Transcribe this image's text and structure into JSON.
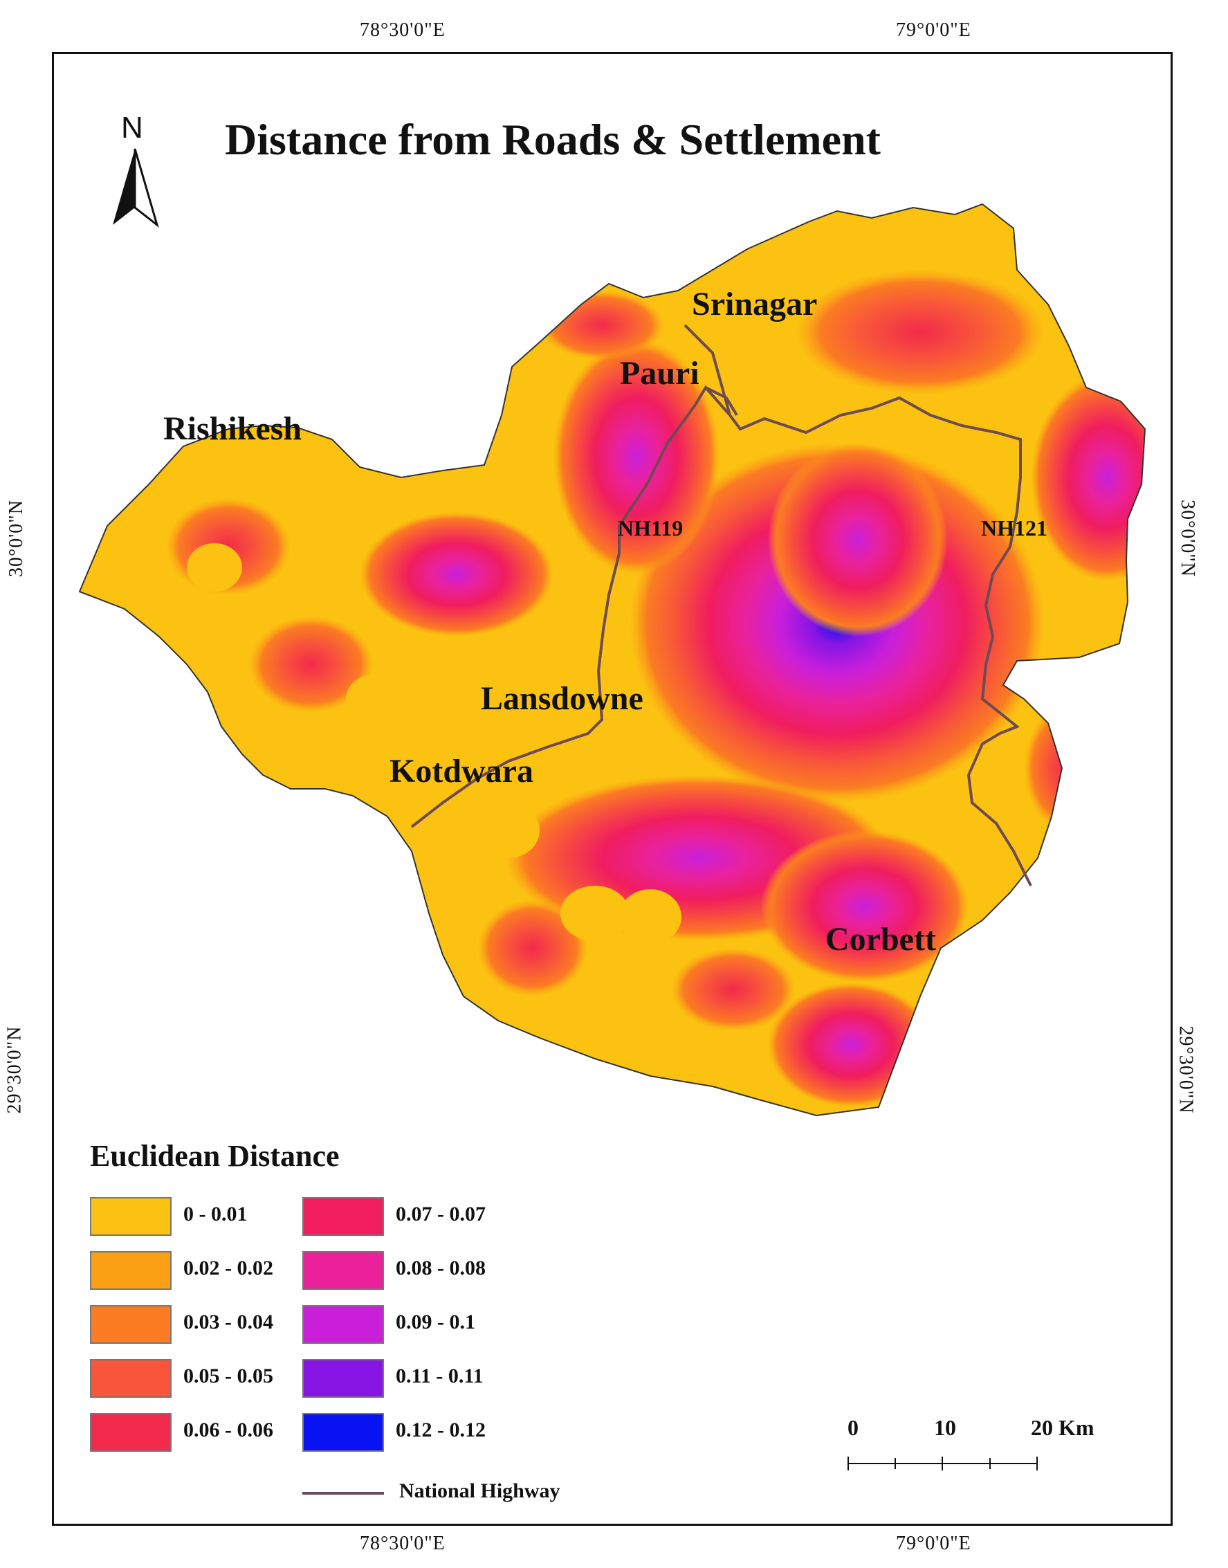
{
  "map_title": "Distance from Roads & Settlement",
  "north_arrow": {
    "letter": "N",
    "icon": "north-arrow-icon"
  },
  "graticule": {
    "top": [
      "78°30'0\"E",
      "79°0'0\"E"
    ],
    "bottom": [
      "78°30'0\"E",
      "79°0'0\"E"
    ],
    "left": [
      "30°0'0\"N",
      "29°30'0\"N"
    ],
    "right": [
      "30°0'0\"N",
      "29°30'0\"N"
    ]
  },
  "places": [
    "Srinagar",
    "Pauri",
    "Rishikesh",
    "Lansdowne",
    "Kotdwara",
    "Corbett"
  ],
  "highways": [
    "NH119",
    "NH121"
  ],
  "legend": {
    "title": "Euclidean Distance",
    "classes": [
      {
        "label": "0 - 0.01",
        "color": "#fbc211"
      },
      {
        "label": "0.02 - 0.02",
        "color": "#fba015"
      },
      {
        "label": "0.03 - 0.04",
        "color": "#fb7c22"
      },
      {
        "label": "0.05 - 0.05",
        "color": "#f8553a"
      },
      {
        "label": "0.06 - 0.06",
        "color": "#f22a4b"
      },
      {
        "label": "0.07 - 0.07",
        "color": "#f01d5f"
      },
      {
        "label": "0.08 - 0.08",
        "color": "#ea219b"
      },
      {
        "label": "0.09 - 0.1",
        "color": "#c91fdb"
      },
      {
        "label": "0.11 - 0.11",
        "color": "#8615e4"
      },
      {
        "label": "0.12 - 0.12",
        "color": "#0812f2"
      }
    ],
    "line_item": {
      "label": "National Highway",
      "color": "#6e4a52"
    }
  },
  "scale_bar": {
    "labels": [
      "0",
      "10",
      "20 Km"
    ]
  }
}
